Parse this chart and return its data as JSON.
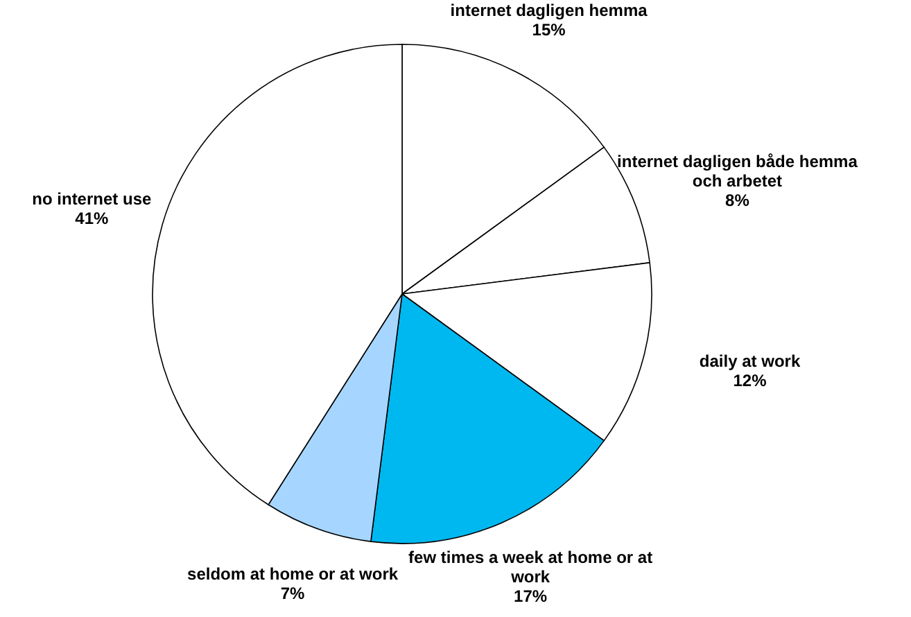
{
  "chart_data": {
    "type": "pie",
    "categories": [
      "internet dagligen hemma",
      "internet dagligen både hemma och arbetet",
      "daily at work",
      "few times a week at home or at work",
      "seldom at home or at work",
      "no internet use"
    ],
    "values": [
      15,
      8,
      12,
      17,
      7,
      41
    ],
    "value_labels": [
      "15%",
      "8%",
      "12%",
      "17%",
      "7%",
      "41%"
    ],
    "colors": [
      "#ffffff",
      "#ffffff",
      "#ffffff",
      "#00b8f0",
      "#a6d6ff",
      "#ffffff"
    ]
  }
}
